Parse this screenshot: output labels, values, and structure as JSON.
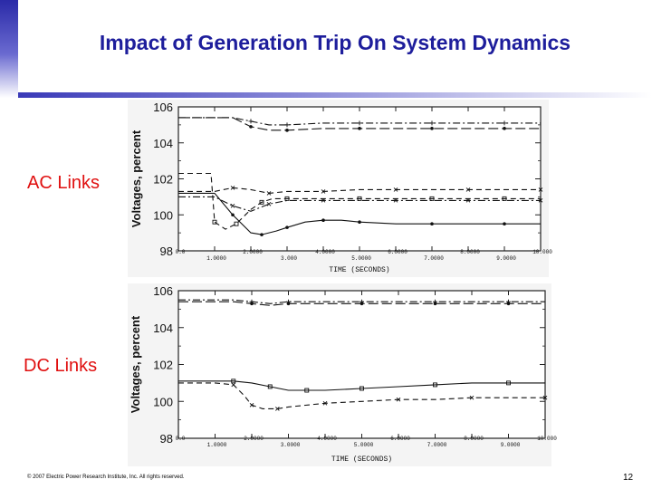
{
  "title": "Impact of Generation Trip On System Dynamics",
  "sections": {
    "ac_label": "AC Links",
    "dc_label": "DC Links"
  },
  "footer": "© 2007 Electric Power Research Institute, Inc. All rights reserved.",
  "page_number": "12",
  "chart_data": [
    {
      "type": "line",
      "ylabel": "Voltages, percent",
      "xlabel": "TIME (SECONDS)",
      "ylim": [
        98,
        106
      ],
      "xlim": [
        0,
        10
      ],
      "y_ticks": [
        "106",
        "104",
        "102",
        "100",
        "98"
      ],
      "y_tick_values": [
        106,
        104,
        102,
        100,
        98
      ],
      "x_ticks": [
        "0.0",
        "1.0000",
        "2.0000",
        "3.000",
        "4.0000",
        "5.0000",
        "6.0000",
        "7.0000",
        "8.0000",
        "9.0000",
        "10.000"
      ],
      "x_tick_values": [
        0,
        1,
        2,
        3,
        4,
        5,
        6,
        7,
        8,
        9,
        10
      ],
      "series": [
        {
          "style": "dash-dot",
          "marker": "+",
          "x": [
            0,
            1.5,
            2,
            2.5,
            3,
            4,
            5,
            6,
            7,
            8,
            9,
            10
          ],
          "y": [
            105.4,
            105.4,
            105.2,
            105.0,
            105.0,
            105.1,
            105.1,
            105.1,
            105.1,
            105.1,
            105.1,
            105.1
          ]
        },
        {
          "style": "long-dash",
          "marker": "dot",
          "x": [
            0,
            1.5,
            2,
            2.5,
            3,
            4,
            5,
            6,
            7,
            8,
            9,
            10
          ],
          "y": [
            105.4,
            105.4,
            104.9,
            104.7,
            104.7,
            104.8,
            104.8,
            104.8,
            104.8,
            104.8,
            104.8,
            104.8
          ]
        },
        {
          "style": "dashed",
          "marker": "square",
          "x": [
            0,
            0.9,
            1.0,
            1.3,
            1.6,
            2.0,
            2.3,
            2.6,
            3.0,
            4.0,
            5.0,
            6.0,
            7.0,
            8.0,
            9.0,
            10.0
          ],
          "y": [
            102.3,
            102.3,
            99.6,
            99.2,
            99.5,
            100.3,
            100.7,
            100.9,
            100.9,
            100.9,
            100.9,
            100.9,
            100.9,
            100.9,
            100.9,
            100.9
          ]
        },
        {
          "style": "dashed",
          "marker": "x",
          "x": [
            0,
            1.0,
            1.5,
            2.0,
            2.5,
            3.0,
            4.0,
            5.0,
            6.0,
            7.0,
            8.0,
            9.0,
            10.0
          ],
          "y": [
            101.3,
            101.3,
            101.5,
            101.4,
            101.2,
            101.3,
            101.3,
            101.4,
            101.4,
            101.4,
            101.4,
            101.4,
            101.4
          ]
        },
        {
          "style": "dash-dot",
          "marker": "x",
          "x": [
            0,
            1.0,
            1.5,
            2.0,
            2.5,
            3.0,
            4.0,
            5.0,
            6.0,
            7.0,
            8.0,
            9.0,
            10.0
          ],
          "y": [
            101.0,
            101.0,
            100.5,
            100.2,
            100.6,
            100.8,
            100.8,
            100.8,
            100.8,
            100.8,
            100.8,
            100.8,
            100.8
          ]
        },
        {
          "style": "solid",
          "marker": "dot",
          "x": [
            0,
            1.0,
            1.5,
            2.0,
            2.3,
            2.7,
            3.0,
            3.5,
            4.0,
            4.5,
            5.0,
            6.0,
            7.0,
            8.0,
            9.0,
            10.0
          ],
          "y": [
            101.2,
            101.2,
            100.0,
            99.0,
            98.9,
            99.1,
            99.3,
            99.6,
            99.7,
            99.7,
            99.6,
            99.5,
            99.5,
            99.5,
            99.5,
            99.5
          ]
        }
      ]
    },
    {
      "type": "line",
      "ylabel": "Voltages, percent",
      "xlabel": "TIME (SECONDS)",
      "ylim": [
        98,
        106
      ],
      "xlim": [
        0,
        10
      ],
      "y_ticks": [
        "106",
        "104",
        "102",
        "100",
        "98"
      ],
      "y_tick_values": [
        106,
        104,
        102,
        100,
        98
      ],
      "x_ticks": [
        "0.0",
        "1.0000",
        "2.0000",
        "3.0000",
        "4.0000",
        "5.0000",
        "6.0000",
        "7.0000",
        "8.0000",
        "9.0000",
        "10.000"
      ],
      "x_tick_values": [
        0,
        1,
        2,
        3,
        4,
        5,
        6,
        7,
        8,
        9,
        10
      ],
      "series": [
        {
          "style": "dash-dot",
          "marker": "+",
          "x": [
            0,
            1.5,
            2.0,
            2.5,
            3.0,
            4.0,
            5.0,
            6.0,
            7.0,
            8.0,
            9.0,
            10.0
          ],
          "y": [
            105.5,
            105.5,
            105.4,
            105.3,
            105.4,
            105.4,
            105.4,
            105.4,
            105.4,
            105.4,
            105.4,
            105.4
          ]
        },
        {
          "style": "long-dash",
          "marker": "dot",
          "x": [
            0,
            1.5,
            2.0,
            2.5,
            3.0,
            4.0,
            5.0,
            6.0,
            7.0,
            8.0,
            9.0,
            10.0
          ],
          "y": [
            105.4,
            105.4,
            105.3,
            105.2,
            105.3,
            105.3,
            105.3,
            105.3,
            105.3,
            105.3,
            105.3,
            105.3
          ]
        },
        {
          "style": "solid",
          "marker": "square",
          "x": [
            0,
            1.0,
            1.5,
            2.0,
            2.5,
            3.0,
            3.5,
            4.0,
            5.0,
            6.0,
            7.0,
            8.0,
            9.0,
            10.0
          ],
          "y": [
            101.1,
            101.1,
            101.1,
            101.0,
            100.8,
            100.6,
            100.6,
            100.6,
            100.7,
            100.8,
            100.9,
            101.0,
            101.0,
            101.0
          ]
        },
        {
          "style": "dashed",
          "marker": "x",
          "x": [
            0,
            1.0,
            1.5,
            1.8,
            2.0,
            2.3,
            2.7,
            3.0,
            4.0,
            5.0,
            6.0,
            7.0,
            8.0,
            9.0,
            10.0
          ],
          "y": [
            101.0,
            101.0,
            100.9,
            100.3,
            99.8,
            99.6,
            99.6,
            99.7,
            99.9,
            100.0,
            100.1,
            100.1,
            100.2,
            100.2,
            100.2
          ]
        }
      ]
    }
  ]
}
